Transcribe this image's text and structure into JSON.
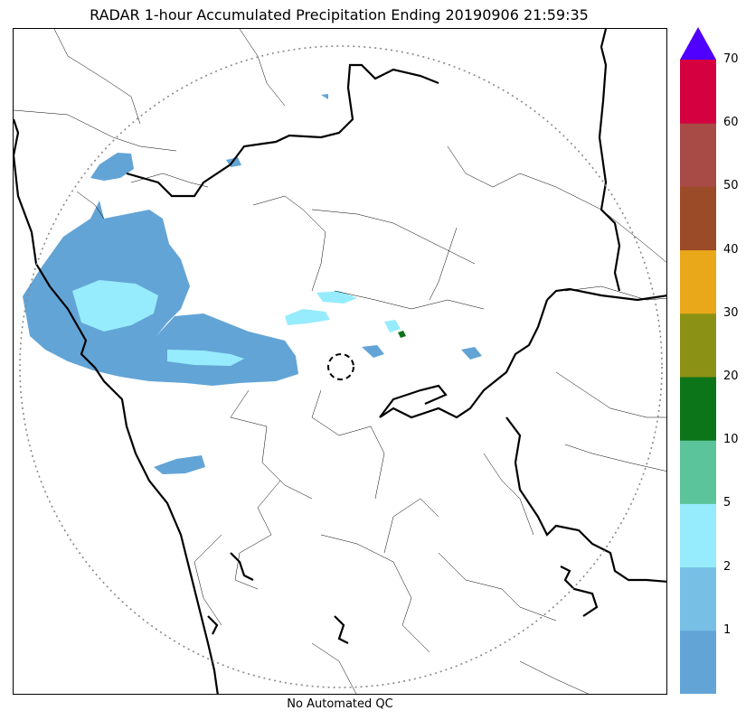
{
  "title": "RADAR 1-hour Accumulated Precipitation Ending 20190906 21:59:35",
  "footer": "No Automated QC",
  "colorbar": {
    "bins": [
      {
        "color": "#63a4d6"
      },
      {
        "color": "#78bfe6"
      },
      {
        "color": "#96ecfd"
      },
      {
        "color": "#5cc49a"
      },
      {
        "color": "#0c7419"
      },
      {
        "color": "#8b9115"
      },
      {
        "color": "#e8a819"
      },
      {
        "color": "#9b4b27"
      },
      {
        "color": "#a84a45"
      },
      {
        "color": "#d4003f"
      }
    ],
    "overflow_color": "#5000ff",
    "tick_labels": [
      "1",
      "2",
      "5",
      "10",
      "20",
      "30",
      "40",
      "50",
      "60",
      "70"
    ]
  },
  "legend_colors": {
    "land_boundary": "#000000",
    "range_ring": "#888888",
    "precip_light": "#63a4d6",
    "precip_moderate": "#96ecfd"
  }
}
